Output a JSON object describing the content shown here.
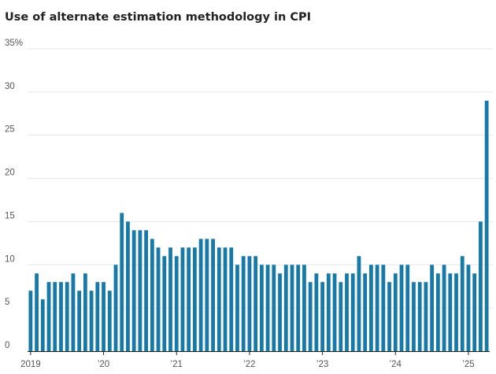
{
  "title": "Use of alternate estimation methodology in CPI",
  "chart_data": {
    "type": "bar",
    "title": "Use of alternate estimation methodology in CPI",
    "xlabel": "",
    "ylabel": "",
    "ylim": [
      0,
      35
    ],
    "y_ticks": [
      0,
      5,
      10,
      15,
      20,
      25,
      30,
      35
    ],
    "y_tick_labels": [
      "0",
      "5",
      "10",
      "15",
      "20",
      "25",
      "30",
      "35%"
    ],
    "x_tick_labels": [
      {
        "label": "2019",
        "index": 0
      },
      {
        "label": "’20",
        "index": 12
      },
      {
        "label": "’21",
        "index": 24
      },
      {
        "label": "’22",
        "index": 36
      },
      {
        "label": "’23",
        "index": 48
      },
      {
        "label": "’24",
        "index": 60
      },
      {
        "label": "’25",
        "index": 72
      }
    ],
    "categories": [
      "2019-01",
      "2019-02",
      "2019-03",
      "2019-04",
      "2019-05",
      "2019-06",
      "2019-07",
      "2019-08",
      "2019-09",
      "2019-10",
      "2019-11",
      "2019-12",
      "2020-01",
      "2020-02",
      "2020-03",
      "2020-04",
      "2020-05",
      "2020-06",
      "2020-07",
      "2020-08",
      "2020-09",
      "2020-10",
      "2020-11",
      "2020-12",
      "2021-01",
      "2021-02",
      "2021-03",
      "2021-04",
      "2021-05",
      "2021-06",
      "2021-07",
      "2021-08",
      "2021-09",
      "2021-10",
      "2021-11",
      "2021-12",
      "2022-01",
      "2022-02",
      "2022-03",
      "2022-04",
      "2022-05",
      "2022-06",
      "2022-07",
      "2022-08",
      "2022-09",
      "2022-10",
      "2022-11",
      "2022-12",
      "2023-01",
      "2023-02",
      "2023-03",
      "2023-04",
      "2023-05",
      "2023-06",
      "2023-07",
      "2023-08",
      "2023-09",
      "2023-10",
      "2023-11",
      "2023-12",
      "2024-01",
      "2024-02",
      "2024-03",
      "2024-04",
      "2024-05",
      "2024-06",
      "2024-07",
      "2024-08",
      "2024-09",
      "2024-10",
      "2024-11",
      "2024-12",
      "2025-01",
      "2025-02",
      "2025-03",
      "2025-04"
    ],
    "values": [
      7,
      9,
      6,
      8,
      8,
      8,
      8,
      9,
      7,
      9,
      7,
      8,
      8,
      7,
      10,
      16,
      15,
      14,
      14,
      14,
      13,
      12,
      11,
      12,
      11,
      12,
      12,
      12,
      13,
      13,
      13,
      12,
      12,
      12,
      10,
      11,
      11,
      11,
      10,
      10,
      10,
      9,
      10,
      10,
      10,
      10,
      8,
      9,
      8,
      9,
      9,
      8,
      9,
      9,
      11,
      9,
      10,
      10,
      10,
      8,
      9,
      10,
      10,
      8,
      8,
      8,
      10,
      9,
      10,
      9,
      9,
      11,
      10,
      9,
      15,
      29
    ],
    "bar_color": "#1779a8",
    "grid": true,
    "grid_color": "#e6e6e6",
    "axis_color": "#222222",
    "tick_text_color": "#555555"
  }
}
